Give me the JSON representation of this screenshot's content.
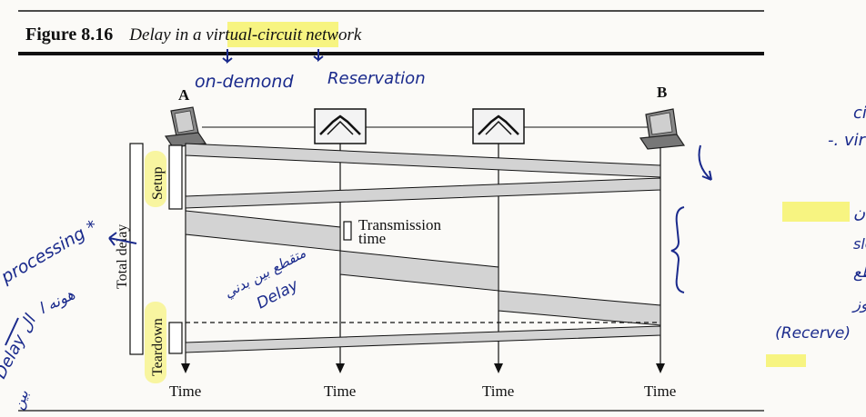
{
  "caption": {
    "figure_number": "Figure 8.16",
    "title_prefix": "Delay in a ",
    "title_highlight": "virtual-circuit",
    "title_suffix": " network"
  },
  "stations": {
    "a_label": "A",
    "b_label": "B"
  },
  "phases": {
    "setup": "Setup",
    "teardown": "Teardown",
    "total_delay": "Total delay"
  },
  "transmission_label_line1": "Transmission",
  "transmission_label_line2": "time",
  "time_labels": [
    "Time",
    "Time",
    "Time",
    "Time"
  ],
  "annotations": {
    "on_demand": "on-demond",
    "reservation": "Reservation",
    "right_top_line1": "الفرق بين ال circuit",
    "right_top_line2": "وال virtual .-",
    "right_mid_line1": "هنا بـ circuit كان",
    "right_mid_line2": "عندي ال slop continous",
    "right_mid_line3": "مش متقطع",
    "right_mid_line4": "لأنه المسار محجوز",
    "right_mid_line5": "(Recerve)",
    "middle_line1": "متقطع بين بدني",
    "middle_line2": "Delay",
    "left_line1": "processing *",
    "left_line2": "هونه ا",
    "left_line3": "Delay ال",
    "left_line4": "بين"
  },
  "colors": {
    "ink": "#111111",
    "band_fill": "#d3d3d3",
    "highlight": "#f6f15a",
    "pen": "#1a2a8c"
  }
}
